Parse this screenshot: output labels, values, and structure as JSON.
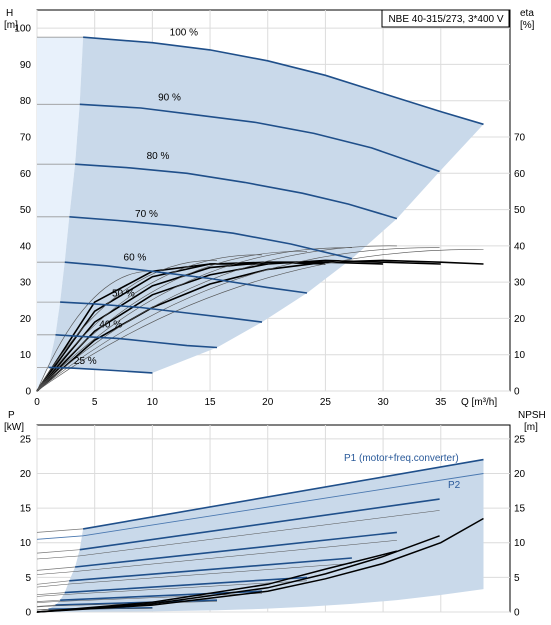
{
  "title_box": "NBE 40-315/273, 3*400 V",
  "chart_data": [
    {
      "type": "line",
      "name": "H",
      "ylabel_left": [
        "H",
        "[m]"
      ],
      "ylabel_right": [
        "eta",
        "[%]"
      ],
      "xlabel": "Q [m³/h]",
      "xlim": [
        0,
        41
      ],
      "ylim": [
        0,
        105
      ],
      "xticks": [
        0,
        5,
        10,
        15,
        20,
        25,
        30,
        35
      ],
      "yticks_left": [
        0,
        10,
        20,
        30,
        40,
        50,
        60,
        70,
        80,
        90,
        100
      ],
      "yticks_right": [
        0,
        10,
        20,
        30,
        40,
        50,
        60,
        70
      ],
      "grid": true,
      "speed_curves": [
        {
          "label": "100 %",
          "label_at": [
            11.5,
            98
          ],
          "x": [
            0,
            4,
            10,
            15,
            20,
            25,
            30,
            35,
            38.7
          ],
          "y": [
            97.5,
            97.5,
            96,
            94,
            91,
            87,
            82,
            77,
            73.5
          ]
        },
        {
          "label": "90 %",
          "label_at": [
            10.5,
            80
          ],
          "x": [
            0,
            3.7,
            9,
            14,
            19,
            24,
            29,
            34.9
          ],
          "y": [
            79,
            79,
            78,
            76,
            74,
            71,
            67,
            60.5
          ]
        },
        {
          "label": "80 %",
          "label_at": [
            9.5,
            64
          ],
          "x": [
            0,
            3.3,
            8,
            13,
            18,
            23,
            27,
            31.2
          ],
          "y": [
            62.5,
            62.5,
            61.5,
            60,
            57.5,
            54.5,
            51.5,
            47.5
          ]
        },
        {
          "label": "70 %",
          "label_at": [
            8.5,
            48
          ],
          "x": [
            0,
            2.8,
            7,
            12,
            17,
            22,
            27.3
          ],
          "y": [
            48,
            48,
            47,
            45.5,
            43.5,
            40.5,
            36.5
          ]
        },
        {
          "label": "60 %",
          "label_at": [
            7.5,
            36
          ],
          "x": [
            0,
            2.4,
            6,
            10,
            15,
            20,
            23.4
          ],
          "y": [
            35.5,
            35.5,
            34.5,
            33,
            31,
            28.5,
            27
          ]
        },
        {
          "label": "50 %",
          "label_at": [
            6.5,
            26
          ],
          "x": [
            0,
            2,
            5,
            9,
            13,
            17,
            19.5
          ],
          "y": [
            24.5,
            24.5,
            24,
            23,
            21.5,
            20,
            19
          ]
        },
        {
          "label": "40 %",
          "label_at": [
            5.4,
            17.5
          ],
          "x": [
            0,
            1.6,
            4,
            7,
            10,
            13,
            15.6
          ],
          "y": [
            15.5,
            15.5,
            15,
            14.5,
            13.5,
            12.5,
            12
          ]
        },
        {
          "label": "25 %",
          "label_at": [
            3.2,
            7.5
          ],
          "x": [
            0,
            1,
            3,
            6,
            10
          ],
          "y": [
            6.5,
            6.5,
            6.3,
            5.8,
            5
          ]
        }
      ],
      "eta_curves_right_axis": [
        {
          "x": [
            0,
            5,
            10,
            15,
            20,
            25,
            30,
            35,
            38.7
          ],
          "y": [
            0,
            14,
            23,
            29.5,
            33.5,
            35.5,
            36,
            35.5,
            35
          ]
        },
        {
          "x": [
            0,
            5,
            10,
            15,
            20,
            25,
            30,
            35
          ],
          "y": [
            0,
            16.5,
            26.5,
            32,
            35,
            36,
            35.5,
            35
          ]
        },
        {
          "x": [
            0,
            5,
            10,
            15,
            20,
            25,
            30
          ],
          "y": [
            0,
            19,
            29,
            34,
            35.5,
            35.5,
            35
          ]
        },
        {
          "x": [
            0,
            5,
            10,
            15,
            20,
            25
          ],
          "y": [
            0,
            22,
            31.5,
            35,
            35.5,
            35
          ]
        },
        {
          "x": [
            0,
            5,
            10,
            15,
            20
          ],
          "y": [
            0,
            24.5,
            33,
            35,
            35
          ]
        }
      ]
    },
    {
      "type": "line",
      "name": "P / NPSH",
      "ylabel_left": [
        "P",
        "[kW]"
      ],
      "ylabel_right": [
        "NPSH",
        "[m]"
      ],
      "xlim": [
        0,
        41
      ],
      "ylim": [
        0,
        27
      ],
      "yticks_left": [
        0,
        5,
        10,
        15,
        20,
        25
      ],
      "yticks_right": [
        0,
        5,
        10,
        15,
        20,
        25
      ],
      "grid": true,
      "legend": [
        "P1 (motor+freq.converter)",
        "P2"
      ],
      "p1_curves": [
        {
          "x": [
            0,
            4,
            38.7
          ],
          "y": [
            11.5,
            12,
            22
          ]
        },
        {
          "x": [
            0,
            3.7,
            34.9
          ],
          "y": [
            8.5,
            9,
            16.3
          ]
        },
        {
          "x": [
            0,
            3.3,
            31.2
          ],
          "y": [
            6,
            6.5,
            11.5
          ]
        },
        {
          "x": [
            0,
            2.8,
            27.3
          ],
          "y": [
            4,
            4.5,
            7.8
          ]
        },
        {
          "x": [
            0,
            2.4,
            23.4
          ],
          "y": [
            2.5,
            2.8,
            5
          ]
        },
        {
          "x": [
            0,
            2,
            19.5
          ],
          "y": [
            1.5,
            1.7,
            3
          ]
        },
        {
          "x": [
            0,
            1.6,
            15.6
          ],
          "y": [
            0.8,
            1,
            1.7
          ]
        },
        {
          "x": [
            0,
            1,
            10
          ],
          "y": [
            0.3,
            0.4,
            0.6
          ]
        }
      ],
      "p2_curve": {
        "x": [
          0,
          4,
          38.7
        ],
        "y": [
          10.5,
          11,
          20
        ]
      },
      "npsh_curves_right_axis": [
        {
          "x": [
            0,
            10,
            20,
            25,
            30,
            35,
            38.7
          ],
          "y": [
            0,
            1,
            3,
            4.8,
            7,
            10,
            13.5
          ]
        },
        {
          "x": [
            0,
            10,
            20,
            25,
            30,
            34.9
          ],
          "y": [
            0,
            1.2,
            3.5,
            5.5,
            8,
            11
          ]
        },
        {
          "x": [
            0,
            10,
            20,
            25,
            31.2
          ],
          "y": [
            0,
            1.4,
            4,
            6.2,
            8.8
          ]
        }
      ]
    }
  ]
}
